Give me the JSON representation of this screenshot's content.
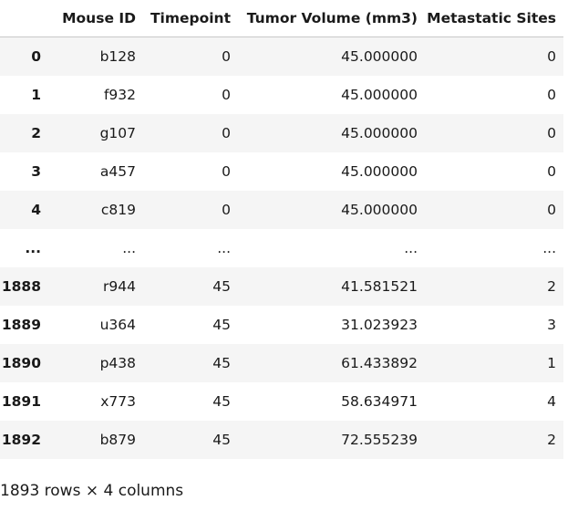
{
  "table": {
    "columns": [
      "",
      "Mouse ID",
      "Timepoint",
      "Tumor Volume (mm3)",
      "Metastatic Sites"
    ],
    "rows": [
      {
        "index": "0",
        "mouse_id": "b128",
        "timepoint": "0",
        "tumor_volume": "45.000000",
        "metastatic_sites": "0"
      },
      {
        "index": "1",
        "mouse_id": "f932",
        "timepoint": "0",
        "tumor_volume": "45.000000",
        "metastatic_sites": "0"
      },
      {
        "index": "2",
        "mouse_id": "g107",
        "timepoint": "0",
        "tumor_volume": "45.000000",
        "metastatic_sites": "0"
      },
      {
        "index": "3",
        "mouse_id": "a457",
        "timepoint": "0",
        "tumor_volume": "45.000000",
        "metastatic_sites": "0"
      },
      {
        "index": "4",
        "mouse_id": "c819",
        "timepoint": "0",
        "tumor_volume": "45.000000",
        "metastatic_sites": "0"
      },
      {
        "index": "...",
        "mouse_id": "...",
        "timepoint": "...",
        "tumor_volume": "...",
        "metastatic_sites": "..."
      },
      {
        "index": "1888",
        "mouse_id": "r944",
        "timepoint": "45",
        "tumor_volume": "41.581521",
        "metastatic_sites": "2"
      },
      {
        "index": "1889",
        "mouse_id": "u364",
        "timepoint": "45",
        "tumor_volume": "31.023923",
        "metastatic_sites": "3"
      },
      {
        "index": "1890",
        "mouse_id": "p438",
        "timepoint": "45",
        "tumor_volume": "61.433892",
        "metastatic_sites": "1"
      },
      {
        "index": "1891",
        "mouse_id": "x773",
        "timepoint": "45",
        "tumor_volume": "58.634971",
        "metastatic_sites": "4"
      },
      {
        "index": "1892",
        "mouse_id": "b879",
        "timepoint": "45",
        "tumor_volume": "72.555239",
        "metastatic_sites": "2"
      }
    ]
  },
  "footer": {
    "shape_text": "1893 rows × 4 columns"
  }
}
